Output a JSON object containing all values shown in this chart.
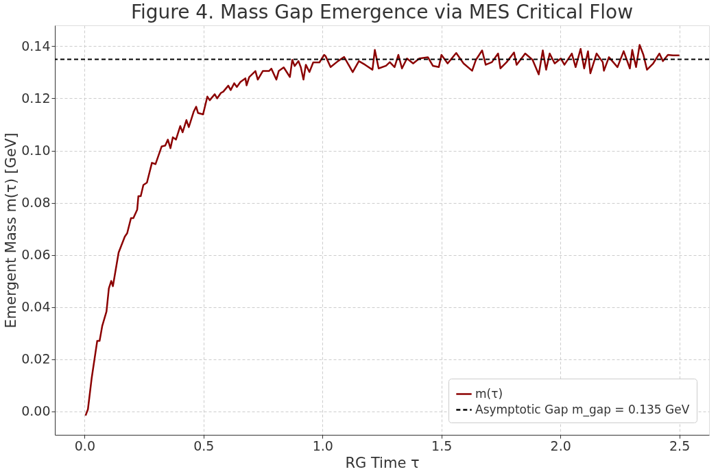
{
  "chart_data": {
    "type": "line",
    "title": "Figure 4. Mass Gap Emergence via MES Critical Flow",
    "xlabel": "RG Time τ",
    "ylabel": "Emergent Mass m(τ) [GeV]",
    "series": [
      {
        "name": "m(τ)",
        "color": "#8b0000",
        "x": [
          0.004,
          0.014,
          0.03,
          0.053,
          0.063,
          0.074,
          0.092,
          0.102,
          0.112,
          0.119,
          0.143,
          0.169,
          0.179,
          0.195,
          0.205,
          0.221,
          0.226,
          0.236,
          0.247,
          0.262,
          0.283,
          0.298,
          0.324,
          0.339,
          0.35,
          0.361,
          0.371,
          0.384,
          0.402,
          0.412,
          0.428,
          0.438,
          0.459,
          0.469,
          0.477,
          0.498,
          0.516,
          0.526,
          0.547,
          0.557,
          0.573,
          0.583,
          0.604,
          0.614,
          0.629,
          0.64,
          0.655,
          0.676,
          0.681,
          0.692,
          0.718,
          0.728,
          0.749,
          0.775,
          0.785,
          0.806,
          0.816,
          0.837,
          0.863,
          0.873,
          0.883,
          0.899,
          0.909,
          0.92,
          0.93,
          0.945,
          0.961,
          0.987,
          1.007,
          1.013,
          1.034,
          1.065,
          1.091,
          1.127,
          1.153,
          1.179,
          1.21,
          1.22,
          1.236,
          1.267,
          1.283,
          1.303,
          1.319,
          1.334,
          1.355,
          1.381,
          1.407,
          1.443,
          1.464,
          1.489,
          1.5,
          1.526,
          1.562,
          1.593,
          1.629,
          1.645,
          1.671,
          1.686,
          1.712,
          1.738,
          1.748,
          1.774,
          1.805,
          1.816,
          1.852,
          1.883,
          1.909,
          1.926,
          1.94,
          1.955,
          1.976,
          2.002,
          2.017,
          2.048,
          2.064,
          2.085,
          2.1,
          2.116,
          2.126,
          2.152,
          2.178,
          2.183,
          2.204,
          2.24,
          2.266,
          2.292,
          2.302,
          2.318,
          2.333,
          2.349,
          2.364,
          2.39,
          2.416,
          2.431,
          2.452,
          2.473,
          2.5
        ],
        "values": [
          -0.0016,
          0.0008,
          0.0129,
          0.027,
          0.027,
          0.0327,
          0.0383,
          0.0472,
          0.05,
          0.048,
          0.0609,
          0.067,
          0.0683,
          0.0741,
          0.0741,
          0.0773,
          0.0825,
          0.0825,
          0.0868,
          0.0877,
          0.0953,
          0.0948,
          0.1016,
          0.1019,
          0.1042,
          0.1009,
          0.1051,
          0.1042,
          0.1094,
          0.107,
          0.1117,
          0.109,
          0.115,
          0.1168,
          0.1144,
          0.1139,
          0.1207,
          0.1193,
          0.1216,
          0.12,
          0.1221,
          0.1226,
          0.1249,
          0.1232,
          0.1258,
          0.1244,
          0.1263,
          0.1277,
          0.125,
          0.1282,
          0.1305,
          0.1272,
          0.1305,
          0.1305,
          0.1314,
          0.1272,
          0.1305,
          0.1319,
          0.1282,
          0.1348,
          0.1324,
          0.1343,
          0.1319,
          0.1272,
          0.1329,
          0.1301,
          0.1338,
          0.1338,
          0.1367,
          0.1362,
          0.132,
          0.1343,
          0.1359,
          0.1301,
          0.1343,
          0.1329,
          0.131,
          0.1386,
          0.1315,
          0.1325,
          0.1339,
          0.132,
          0.1367,
          0.1315,
          0.1353,
          0.1334,
          0.1353,
          0.1358,
          0.1325,
          0.132,
          0.1367,
          0.1334,
          0.1374,
          0.1334,
          0.1306,
          0.1348,
          0.1384,
          0.1329,
          0.1339,
          0.1372,
          0.1315,
          0.1339,
          0.1376,
          0.1329,
          0.1372,
          0.1348,
          0.1292,
          0.1384,
          0.131,
          0.1372,
          0.1334,
          0.1353,
          0.1329,
          0.1372,
          0.132,
          0.139,
          0.1315,
          0.1381,
          0.1296,
          0.1372,
          0.1339,
          0.1306,
          0.1358,
          0.132,
          0.1381,
          0.1315,
          0.1386,
          0.132,
          0.1405,
          0.1367,
          0.131,
          0.1334,
          0.1372,
          0.1343,
          0.1367,
          0.1365,
          0.1365
        ]
      }
    ],
    "ref_lines": [
      {
        "axis": "y",
        "value": 0.135,
        "label": "Asymptotic Gap m_gap = 0.135 GeV",
        "color": "#000000",
        "line_style": "dashed"
      }
    ],
    "xlim": [
      -0.125,
      2.625
    ],
    "ylim": [
      -0.009,
      0.148
    ],
    "xticks": [
      {
        "value": 0,
        "label": "0.0"
      },
      0.5,
      {
        "value": 1,
        "label": "1.0"
      },
      1.5,
      {
        "value": 2,
        "label": "2.0"
      },
      2.5
    ],
    "yticks": [
      {
        "value": 0,
        "label": "0.00"
      },
      {
        "value": 0.02,
        "label": "0.02"
      },
      {
        "value": 0.04,
        "label": "0.04"
      },
      {
        "value": 0.06,
        "label": "0.06"
      },
      {
        "value": 0.08,
        "label": "0.08"
      },
      {
        "value": 0.1,
        "label": "0.10"
      },
      {
        "value": 0.12,
        "label": "0.12"
      },
      {
        "value": 0.14,
        "label": "0.14"
      }
    ],
    "grid": true,
    "legend": "bottom right",
    "line_style": "solid",
    "marker": "none"
  }
}
